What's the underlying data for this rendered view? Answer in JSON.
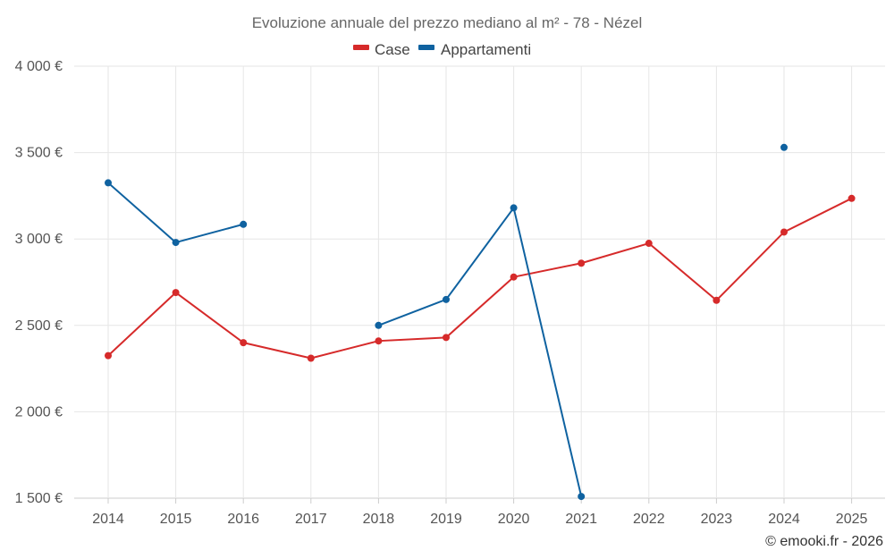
{
  "chart_data": {
    "type": "line",
    "title": "Evoluzione annuale del prezzo mediano al m² - 78 - Nézel",
    "categories": [
      "2014",
      "2015",
      "2016",
      "2017",
      "2018",
      "2019",
      "2020",
      "2021",
      "2022",
      "2023",
      "2024",
      "2025"
    ],
    "y_tick_labels": [
      "1 500 €",
      "2 000 €",
      "2 500 €",
      "3 000 €",
      "3 500 €",
      "4 000 €"
    ],
    "y_ticks": [
      1500,
      2000,
      2500,
      3000,
      3500,
      4000
    ],
    "ylim": [
      1500,
      4000
    ],
    "xlabel": "",
    "ylabel": "",
    "grid": true,
    "legend_position": "top-center",
    "series": [
      {
        "name": "Case",
        "color": "#d62a2a",
        "values": [
          2325,
          2690,
          2400,
          2310,
          2410,
          2430,
          2780,
          2860,
          2975,
          2645,
          3040,
          3235
        ]
      },
      {
        "name": "Appartamenti",
        "color": "#0f62a0",
        "values": [
          3325,
          2980,
          3085,
          null,
          2500,
          2650,
          3180,
          1510,
          null,
          null,
          3530,
          null
        ]
      }
    ]
  },
  "credit": "© emooki.fr - 2026"
}
